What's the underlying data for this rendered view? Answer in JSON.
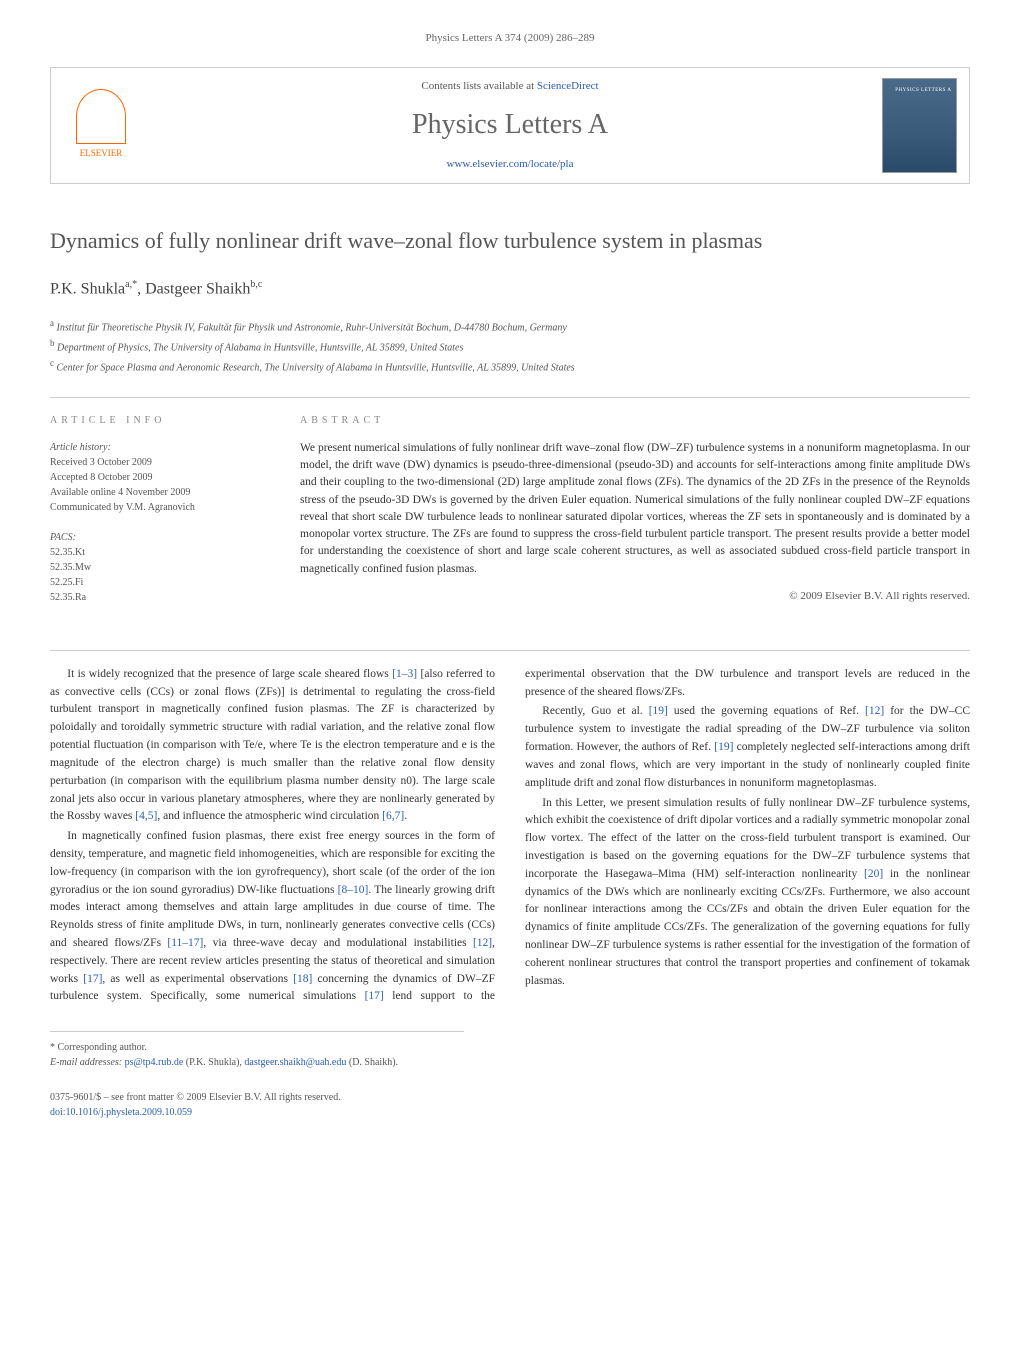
{
  "header": {
    "citation": "Physics Letters A 374 (2009) 286–289"
  },
  "banner": {
    "contents_prefix": "Contents lists available at ",
    "contents_link": "ScienceDirect",
    "journal_name": "Physics Letters A",
    "journal_url": "www.elsevier.com/locate/pla",
    "publisher_name": "ELSEVIER",
    "cover_label": "PHYSICS LETTERS A"
  },
  "article": {
    "title": "Dynamics of fully nonlinear drift wave–zonal flow turbulence system in plasmas",
    "authors_html": "P.K. Shukla",
    "author1": "P.K. Shukla",
    "author1_sup": "a,*",
    "author2": "Dastgeer Shaikh",
    "author2_sup": "b,c",
    "affiliations": {
      "a": "Institut für Theoretische Physik IV, Fakultät für Physik und Astronomie, Ruhr-Universität Bochum, D-44780 Bochum, Germany",
      "b": "Department of Physics, The University of Alabama in Huntsville, Huntsville, AL 35899, United States",
      "c": "Center for Space Plasma and Aeronomic Research, The University of Alabama in Huntsville, Huntsville, AL 35899, United States"
    }
  },
  "info": {
    "heading": "ARTICLE INFO",
    "history_label": "Article history:",
    "received": "Received 3 October 2009",
    "accepted": "Accepted 8 October 2009",
    "online": "Available online 4 November 2009",
    "communicated": "Communicated by V.M. Agranovich",
    "pacs_label": "PACS:",
    "pacs": [
      "52.35.Kt",
      "52.35.Mw",
      "52.25.Fi",
      "52.35.Ra"
    ]
  },
  "abstract": {
    "heading": "ABSTRACT",
    "text": "We present numerical simulations of fully nonlinear drift wave–zonal flow (DW–ZF) turbulence systems in a nonuniform magnetoplasma. In our model, the drift wave (DW) dynamics is pseudo-three-dimensional (pseudo-3D) and accounts for self-interactions among finite amplitude DWs and their coupling to the two-dimensional (2D) large amplitude zonal flows (ZFs). The dynamics of the 2D ZFs in the presence of the Reynolds stress of the pseudo-3D DWs is governed by the driven Euler equation. Numerical simulations of the fully nonlinear coupled DW–ZF equations reveal that short scale DW turbulence leads to nonlinear saturated dipolar vortices, whereas the ZF sets in spontaneously and is dominated by a monopolar vortex structure. The ZFs are found to suppress the cross-field turbulent particle transport. The present results provide a better model for understanding the coexistence of short and large scale coherent structures, as well as associated subdued cross-field particle transport in magnetically confined fusion plasmas.",
    "copyright": "© 2009 Elsevier B.V. All rights reserved."
  },
  "body": {
    "p1_a": "It is widely recognized that the presence of large scale sheared flows ",
    "p1_ref1": "[1–3]",
    "p1_b": " [also referred to as convective cells (CCs) or zonal flows (ZFs)] is detrimental to regulating the cross-field turbulent transport in magnetically confined fusion plasmas. The ZF is characterized by poloidally and toroidally symmetric structure with radial variation, and the relative zonal flow potential fluctuation (in comparison with Te/e, where Te is the electron temperature and e is the magnitude of the electron charge) is much smaller than the relative zonal flow density perturbation (in comparison with the equilibrium plasma number density n0). The large scale zonal jets also occur in various planetary atmospheres, where they are nonlinearly generated by the Rossby waves ",
    "p1_ref2": "[4,5]",
    "p1_c": ", and influence the atmospheric wind circulation ",
    "p1_ref3": "[6,7]",
    "p1_d": ".",
    "p2_a": "In magnetically confined fusion plasmas, there exist free energy sources in the form of density, temperature, and magnetic field inhomogeneities, which are responsible for exciting the low-frequency (in comparison with the ion gyrofrequency), short scale (of the order of the ion gyroradius or the ion sound gyroradius) DW-like fluctuations ",
    "p2_ref1": "[8–10]",
    "p2_b": ". The linearly growing drift modes interact among themselves and attain large amplitudes in due course of time. The Reynolds stress of finite amplitude DWs, in turn, nonlinearly generates convective cells (CCs) and sheared flows/ZFs ",
    "p2_ref2": "[11–17]",
    "p2_c": ", via three-wave decay and modulational instabilities ",
    "p2_ref3": "[12]",
    "p2_d": ", respectively. There are recent review articles presenting the status of theoretical and simulation works ",
    "p2_ref4": "[17]",
    "p2_e": ", as well as experimental observations ",
    "p2_ref5": "[18]",
    "p2_f": " concerning the dynamics of DW–ZF turbulence system. Specifically, some numerical simulations ",
    "p2_ref6": "[17]",
    "p2_g": " lend support to the experimental observation that the DW turbulence and transport levels are reduced in the presence of the sheared flows/ZFs.",
    "p3_a": "Recently, Guo et al. ",
    "p3_ref1": "[19]",
    "p3_b": " used the governing equations of Ref. ",
    "p3_ref2": "[12]",
    "p3_c": " for the DW–CC turbulence system to investigate the radial spreading of the DW–ZF turbulence via soliton formation. However, the authors of Ref. ",
    "p3_ref3": "[19]",
    "p3_d": " completely neglected self-interactions among drift waves and zonal flows, which are very important in the study of nonlinearly coupled finite amplitude drift and zonal flow disturbances in nonuniform magnetoplasmas.",
    "p4_a": "In this Letter, we present simulation results of fully nonlinear DW–ZF turbulence systems, which exhibit the coexistence of drift dipolar vortices and a radially symmetric monopolar zonal flow vortex. The effect of the latter on the cross-field turbulent transport is examined. Our investigation is based on the governing equations for the DW–ZF turbulence systems that incorporate the Hasegawa–Mima (HM) self-interaction nonlinearity ",
    "p4_ref1": "[20]",
    "p4_b": " in the nonlinear dynamics of the DWs which are nonlinearly exciting CCs/ZFs. Furthermore, we also account for nonlinear interactions among the CCs/ZFs and obtain the driven Euler equation for the dynamics of finite amplitude CCs/ZFs. The generalization of the governing equations for fully nonlinear DW–ZF turbulence systems is rather essential for the investigation of the formation of coherent nonlinear structures that control the transport properties and confinement of tokamak plasmas."
  },
  "footnotes": {
    "corr_label": "* Corresponding author.",
    "email_label": "E-mail addresses: ",
    "email1": "ps@tp4.rub.de",
    "email1_name": " (P.K. Shukla), ",
    "email2": "dastgeer.shaikh@uah.edu",
    "email2_name": " (D. Shaikh)."
  },
  "bottom": {
    "issn": "0375-9601/$ – see front matter © 2009 Elsevier B.V. All rights reserved.",
    "doi": "doi:10.1016/j.physleta.2009.10.059"
  },
  "colors": {
    "link": "#2a5db0",
    "elsevier_orange": "#ff6600",
    "title_gray": "#555555",
    "text": "#333333",
    "muted": "#666666"
  }
}
